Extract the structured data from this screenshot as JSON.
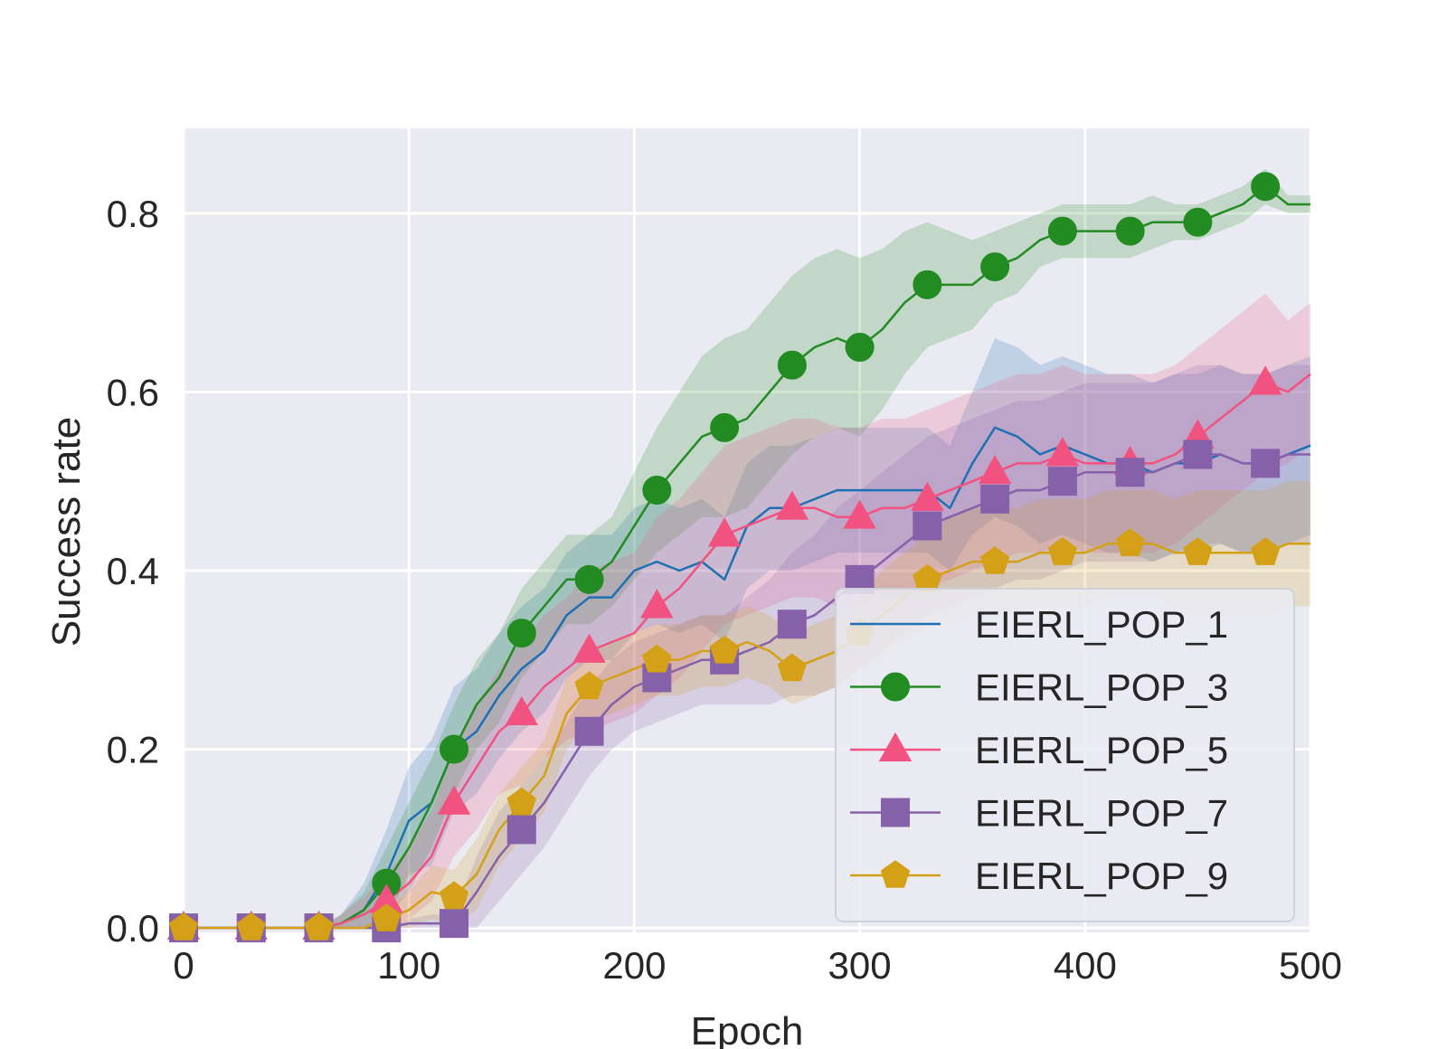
{
  "chart_data": {
    "type": "line",
    "title": "",
    "xlabel": "Epoch",
    "ylabel": "Success rate",
    "xlim": [
      0,
      500
    ],
    "ylim": [
      -0.005,
      0.895
    ],
    "xticks": [
      0,
      100,
      200,
      300,
      400,
      500
    ],
    "xtick_labels": [
      "0",
      "100",
      "200",
      "300",
      "400",
      "500"
    ],
    "yticks": [
      0.0,
      0.2,
      0.4,
      0.6,
      0.8
    ],
    "ytick_labels": [
      "0.0",
      "0.2",
      "0.4",
      "0.6",
      "0.8"
    ],
    "grid": true,
    "legend_position": "lower-right",
    "background": "#eaeaf2",
    "series": [
      {
        "name": "EIERL_POP_1",
        "color": "#1f6fb4",
        "marker": "none",
        "x": [
          0,
          60,
          70,
          80,
          90,
          100,
          110,
          120,
          130,
          140,
          150,
          160,
          170,
          180,
          190,
          200,
          210,
          220,
          230,
          240,
          250,
          260,
          270,
          280,
          290,
          300,
          310,
          320,
          330,
          340,
          350,
          360,
          370,
          380,
          390,
          400,
          410,
          420,
          430,
          440,
          450,
          460,
          470,
          480,
          490,
          500
        ],
        "y": [
          0.0,
          0.0,
          0.005,
          0.02,
          0.06,
          0.12,
          0.14,
          0.2,
          0.22,
          0.26,
          0.29,
          0.31,
          0.35,
          0.37,
          0.37,
          0.4,
          0.41,
          0.4,
          0.41,
          0.39,
          0.45,
          0.47,
          0.47,
          0.48,
          0.49,
          0.49,
          0.49,
          0.49,
          0.49,
          0.47,
          0.52,
          0.56,
          0.55,
          0.53,
          0.54,
          0.53,
          0.52,
          0.52,
          0.51,
          0.52,
          0.52,
          0.53,
          0.52,
          0.52,
          0.53,
          0.54
        ],
        "band_width": [
          0,
          0,
          0.01,
          0.03,
          0.05,
          0.06,
          0.07,
          0.07,
          0.07,
          0.07,
          0.07,
          0.07,
          0.07,
          0.07,
          0.07,
          0.07,
          0.07,
          0.07,
          0.07,
          0.07,
          0.07,
          0.07,
          0.07,
          0.07,
          0.07,
          0.07,
          0.07,
          0.07,
          0.07,
          0.07,
          0.08,
          0.1,
          0.1,
          0.1,
          0.1,
          0.1,
          0.1,
          0.1,
          0.1,
          0.1,
          0.1,
          0.1,
          0.1,
          0.1,
          0.1,
          0.1
        ]
      },
      {
        "name": "EIERL_POP_3",
        "color": "#228b22",
        "marker": "circle",
        "x": [
          0,
          60,
          70,
          80,
          90,
          100,
          110,
          120,
          130,
          140,
          150,
          160,
          170,
          180,
          190,
          200,
          210,
          220,
          230,
          240,
          250,
          260,
          270,
          280,
          290,
          300,
          310,
          320,
          330,
          340,
          350,
          360,
          370,
          380,
          390,
          400,
          410,
          420,
          430,
          440,
          450,
          460,
          470,
          480,
          490,
          500
        ],
        "y": [
          0.0,
          0.0,
          0.005,
          0.02,
          0.05,
          0.09,
          0.14,
          0.2,
          0.25,
          0.28,
          0.33,
          0.36,
          0.39,
          0.39,
          0.41,
          0.45,
          0.49,
          0.52,
          0.55,
          0.56,
          0.57,
          0.6,
          0.63,
          0.65,
          0.66,
          0.65,
          0.67,
          0.7,
          0.72,
          0.72,
          0.72,
          0.74,
          0.75,
          0.77,
          0.78,
          0.78,
          0.78,
          0.78,
          0.79,
          0.79,
          0.79,
          0.8,
          0.81,
          0.83,
          0.81,
          0.81
        ],
        "band_width": [
          0,
          0,
          0.01,
          0.02,
          0.04,
          0.05,
          0.05,
          0.05,
          0.05,
          0.05,
          0.05,
          0.05,
          0.05,
          0.05,
          0.05,
          0.06,
          0.07,
          0.08,
          0.09,
          0.1,
          0.1,
          0.1,
          0.1,
          0.1,
          0.1,
          0.1,
          0.09,
          0.08,
          0.07,
          0.06,
          0.05,
          0.04,
          0.04,
          0.03,
          0.03,
          0.03,
          0.03,
          0.03,
          0.03,
          0.02,
          0.02,
          0.02,
          0.02,
          0.02,
          0.01,
          0.01
        ]
      },
      {
        "name": "EIERL_POP_5",
        "color": "#f2527f",
        "marker": "triangle",
        "x": [
          0,
          60,
          70,
          80,
          90,
          100,
          110,
          120,
          130,
          140,
          150,
          160,
          170,
          180,
          190,
          200,
          210,
          220,
          230,
          240,
          250,
          260,
          270,
          280,
          290,
          300,
          310,
          320,
          330,
          340,
          350,
          360,
          370,
          380,
          390,
          400,
          410,
          420,
          430,
          440,
          450,
          460,
          470,
          480,
          490,
          500
        ],
        "y": [
          0.0,
          0.0,
          0.005,
          0.015,
          0.03,
          0.05,
          0.08,
          0.14,
          0.18,
          0.22,
          0.24,
          0.27,
          0.29,
          0.31,
          0.32,
          0.33,
          0.36,
          0.38,
          0.41,
          0.44,
          0.45,
          0.46,
          0.47,
          0.47,
          0.46,
          0.46,
          0.47,
          0.47,
          0.48,
          0.49,
          0.5,
          0.51,
          0.52,
          0.52,
          0.53,
          0.52,
          0.52,
          0.52,
          0.52,
          0.53,
          0.55,
          0.57,
          0.59,
          0.61,
          0.6,
          0.62
        ],
        "band_width": [
          0,
          0,
          0.01,
          0.02,
          0.03,
          0.04,
          0.05,
          0.06,
          0.07,
          0.07,
          0.08,
          0.08,
          0.08,
          0.09,
          0.09,
          0.09,
          0.1,
          0.1,
          0.1,
          0.1,
          0.1,
          0.1,
          0.1,
          0.1,
          0.1,
          0.1,
          0.1,
          0.1,
          0.1,
          0.1,
          0.1,
          0.1,
          0.1,
          0.1,
          0.1,
          0.1,
          0.1,
          0.1,
          0.1,
          0.1,
          0.1,
          0.1,
          0.1,
          0.1,
          0.08,
          0.08
        ]
      },
      {
        "name": "EIERL_POP_7",
        "color": "#8661aa",
        "marker": "square",
        "x": [
          0,
          60,
          70,
          80,
          90,
          100,
          110,
          120,
          130,
          140,
          150,
          160,
          170,
          180,
          190,
          200,
          210,
          220,
          230,
          240,
          250,
          260,
          270,
          280,
          290,
          300,
          310,
          320,
          330,
          340,
          350,
          360,
          370,
          380,
          390,
          400,
          410,
          420,
          430,
          440,
          450,
          460,
          470,
          480,
          490,
          500
        ],
        "y": [
          0.0,
          0.0,
          0.0,
          0.0,
          0.0,
          0.005,
          0.005,
          0.005,
          0.04,
          0.08,
          0.11,
          0.14,
          0.18,
          0.22,
          0.25,
          0.27,
          0.28,
          0.29,
          0.3,
          0.3,
          0.31,
          0.32,
          0.34,
          0.35,
          0.37,
          0.39,
          0.41,
          0.43,
          0.45,
          0.46,
          0.47,
          0.48,
          0.49,
          0.49,
          0.5,
          0.51,
          0.51,
          0.51,
          0.51,
          0.52,
          0.53,
          0.53,
          0.52,
          0.52,
          0.53,
          0.53
        ],
        "band_width": [
          0,
          0,
          0,
          0,
          0,
          0.005,
          0.01,
          0.01,
          0.04,
          0.05,
          0.05,
          0.05,
          0.05,
          0.05,
          0.05,
          0.05,
          0.05,
          0.05,
          0.05,
          0.05,
          0.06,
          0.07,
          0.08,
          0.09,
          0.1,
          0.1,
          0.1,
          0.1,
          0.1,
          0.1,
          0.1,
          0.1,
          0.1,
          0.1,
          0.1,
          0.1,
          0.1,
          0.1,
          0.1,
          0.1,
          0.1,
          0.1,
          0.1,
          0.1,
          0.1,
          0.1
        ]
      },
      {
        "name": "EIERL_POP_9",
        "color": "#d4a017",
        "marker": "pentagon",
        "x": [
          0,
          60,
          70,
          80,
          90,
          100,
          110,
          120,
          130,
          140,
          150,
          160,
          170,
          180,
          190,
          200,
          210,
          220,
          230,
          240,
          250,
          260,
          270,
          280,
          290,
          300,
          310,
          320,
          330,
          340,
          350,
          360,
          370,
          380,
          390,
          400,
          410,
          420,
          430,
          440,
          450,
          460,
          470,
          480,
          490,
          500
        ],
        "y": [
          0.0,
          0.0,
          0.0,
          0.0,
          0.01,
          0.02,
          0.04,
          0.035,
          0.06,
          0.11,
          0.14,
          0.17,
          0.24,
          0.27,
          0.28,
          0.29,
          0.3,
          0.3,
          0.31,
          0.31,
          0.32,
          0.31,
          0.29,
          0.3,
          0.31,
          0.33,
          0.35,
          0.37,
          0.39,
          0.4,
          0.41,
          0.41,
          0.41,
          0.42,
          0.42,
          0.42,
          0.43,
          0.43,
          0.43,
          0.42,
          0.42,
          0.42,
          0.42,
          0.42,
          0.43,
          0.43
        ],
        "band_width": [
          0,
          0,
          0,
          0,
          0.01,
          0.02,
          0.03,
          0.03,
          0.04,
          0.04,
          0.04,
          0.04,
          0.04,
          0.04,
          0.04,
          0.04,
          0.04,
          0.04,
          0.04,
          0.04,
          0.04,
          0.04,
          0.04,
          0.04,
          0.04,
          0.04,
          0.05,
          0.05,
          0.05,
          0.06,
          0.06,
          0.06,
          0.06,
          0.06,
          0.06,
          0.06,
          0.06,
          0.06,
          0.06,
          0.06,
          0.07,
          0.07,
          0.07,
          0.07,
          0.07,
          0.07
        ]
      }
    ],
    "marker_x": [
      0,
      30,
      60,
      90,
      120,
      150,
      180,
      210,
      240,
      270,
      300,
      330,
      360,
      390,
      420,
      450,
      480
    ]
  }
}
